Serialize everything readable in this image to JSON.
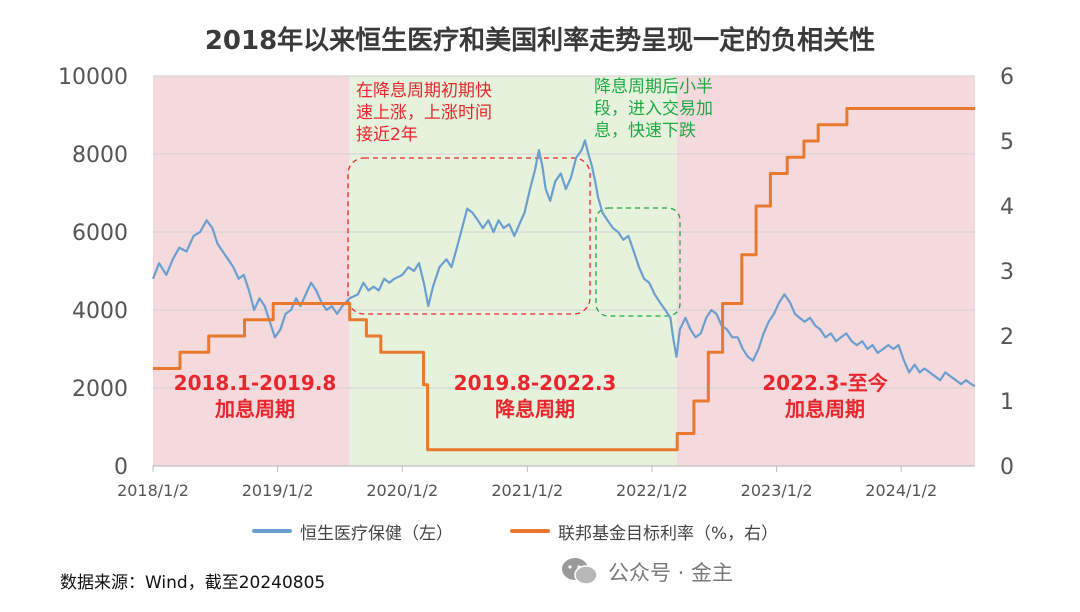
{
  "title": "2018年以来恒生医疗和美国利率走势呈现一定的负相关性",
  "source": "数据来源：Wind，截至20240805",
  "watermark": "公众号 · 金主",
  "annotations": {
    "rise": [
      "在降息周期初期快",
      "速上涨，上涨时间",
      "接近2年"
    ],
    "fall": [
      "降息周期后小半",
      "段，进入交易加",
      "息，快速下跌"
    ]
  },
  "periods": [
    {
      "range": "2018.1-2019.8",
      "label": "加息周期"
    },
    {
      "range": "2019.8-2022.3",
      "label": "降息周期"
    },
    {
      "range": "2022.3-至今",
      "label": "加息周期"
    }
  ],
  "legend": {
    "left_series": "恒生医疗保健（左）",
    "right_series": "联邦基金目标利率（%，右）"
  },
  "colors": {
    "index_line": "#6a9fd0",
    "rate_line": "#e8792f",
    "hike_shade": "#f5dadd",
    "cut_shade": "#e6f2dc",
    "annotation_red": "#e8262d",
    "annotation_green": "#1fa945"
  },
  "chart_data": {
    "type": "line",
    "x_type": "date",
    "x_ticks": [
      "2018/1/2",
      "2019/1/2",
      "2020/1/2",
      "2021/1/2",
      "2022/1/2",
      "2023/1/2",
      "2024/1/2"
    ],
    "x_range": [
      "2018/1/2",
      "2024/8/5"
    ],
    "y_left": {
      "ticks": [
        "0",
        "2000",
        "4000",
        "6000",
        "8000",
        "10000"
      ],
      "range": [
        0,
        10000
      ]
    },
    "y_right": {
      "ticks": [
        "0",
        "1",
        "2",
        "3",
        "4",
        "5",
        "6"
      ],
      "range": [
        0,
        6
      ]
    },
    "grid": "horizontal",
    "legend_position": "bottom",
    "shaded_periods": [
      {
        "start": "2018/1/2",
        "end": "2019/8/1",
        "kind": "hike"
      },
      {
        "start": "2019/8/1",
        "end": "2022/3/16",
        "kind": "cut"
      },
      {
        "start": "2022/3/16",
        "end": "2024/8/5",
        "kind": "hike"
      }
    ],
    "series": [
      {
        "name": "恒生医疗保健（左）",
        "axis": "left",
        "points": [
          [
            "2018/1/2",
            4800
          ],
          [
            "2018/1/20",
            5200
          ],
          [
            "2018/2/10",
            4900
          ],
          [
            "2018/3/1",
            5300
          ],
          [
            "2018/3/20",
            5600
          ],
          [
            "2018/4/10",
            5500
          ],
          [
            "2018/5/1",
            5900
          ],
          [
            "2018/5/20",
            6000
          ],
          [
            "2018/6/8",
            6300
          ],
          [
            "2018/6/25",
            6100
          ],
          [
            "2018/7/10",
            5700
          ],
          [
            "2018/7/25",
            5500
          ],
          [
            "2018/8/10",
            5300
          ],
          [
            "2018/8/25",
            5100
          ],
          [
            "2018/9/10",
            4800
          ],
          [
            "2018/9/25",
            4900
          ],
          [
            "2018/10/10",
            4500
          ],
          [
            "2018/10/25",
            4000
          ],
          [
            "2018/11/10",
            4300
          ],
          [
            "2018/11/25",
            4100
          ],
          [
            "2018/12/10",
            3700
          ],
          [
            "2018/12/25",
            3300
          ],
          [
            "2019/1/10",
            3500
          ],
          [
            "2019/1/25",
            3900
          ],
          [
            "2019/2/10",
            4000
          ],
          [
            "2019/2/25",
            4300
          ],
          [
            "2019/3/10",
            4100
          ],
          [
            "2019/3/25",
            4400
          ],
          [
            "2019/4/10",
            4700
          ],
          [
            "2019/4/25",
            4500
          ],
          [
            "2019/5/10",
            4200
          ],
          [
            "2019/5/25",
            4000
          ],
          [
            "2019/6/10",
            4100
          ],
          [
            "2019/6/25",
            3900
          ],
          [
            "2019/7/10",
            4100
          ],
          [
            "2019/8/1",
            4300
          ],
          [
            "2019/8/25",
            4400
          ],
          [
            "2019/9/10",
            4700
          ],
          [
            "2019/9/25",
            4500
          ],
          [
            "2019/10/10",
            4600
          ],
          [
            "2019/10/25",
            4500
          ],
          [
            "2019/11/10",
            4800
          ],
          [
            "2019/11/25",
            4700
          ],
          [
            "2019/12/10",
            4800
          ],
          [
            "2020/1/2",
            4900
          ],
          [
            "2020/1/20",
            5100
          ],
          [
            "2020/2/5",
            5000
          ],
          [
            "2020/2/20",
            5200
          ],
          [
            "2020/3/5",
            4700
          ],
          [
            "2020/3/18",
            4100
          ],
          [
            "2020/4/1",
            4600
          ],
          [
            "2020/4/20",
            5100
          ],
          [
            "2020/5/10",
            5300
          ],
          [
            "2020/5/25",
            5100
          ],
          [
            "2020/6/10",
            5600
          ],
          [
            "2020/6/25",
            6100
          ],
          [
            "2020/7/10",
            6600
          ],
          [
            "2020/7/25",
            6500
          ],
          [
            "2020/8/10",
            6300
          ],
          [
            "2020/8/25",
            6100
          ],
          [
            "2020/9/10",
            6300
          ],
          [
            "2020/9/25",
            6000
          ],
          [
            "2020/10/10",
            6300
          ],
          [
            "2020/10/25",
            6100
          ],
          [
            "2020/11/10",
            6200
          ],
          [
            "2020/11/25",
            5900
          ],
          [
            "2020/12/10",
            6200
          ],
          [
            "2020/12/25",
            6500
          ],
          [
            "2021/1/10",
            7100
          ],
          [
            "2021/1/25",
            7600
          ],
          [
            "2021/2/5",
            8100
          ],
          [
            "2021/2/15",
            7700
          ],
          [
            "2021/2/25",
            7100
          ],
          [
            "2021/3/10",
            6800
          ],
          [
            "2021/3/25",
            7300
          ],
          [
            "2021/4/10",
            7500
          ],
          [
            "2021/4/25",
            7100
          ],
          [
            "2021/5/10",
            7400
          ],
          [
            "2021/5/25",
            7900
          ],
          [
            "2021/6/10",
            8100
          ],
          [
            "2021/6/20",
            8350
          ],
          [
            "2021/6/30",
            8000
          ],
          [
            "2021/7/10",
            7700
          ],
          [
            "2021/7/20",
            7300
          ],
          [
            "2021/7/28",
            6900
          ],
          [
            "2021/8/10",
            6500
          ],
          [
            "2021/8/25",
            6300
          ],
          [
            "2021/9/10",
            6100
          ],
          [
            "2021/9/25",
            6000
          ],
          [
            "2021/10/10",
            5800
          ],
          [
            "2021/10/25",
            5900
          ],
          [
            "2021/11/10",
            5500
          ],
          [
            "2021/11/25",
            5100
          ],
          [
            "2021/12/10",
            4800
          ],
          [
            "2021/12/25",
            4700
          ],
          [
            "2022/1/10",
            4400
          ],
          [
            "2022/1/25",
            4200
          ],
          [
            "2022/2/10",
            4000
          ],
          [
            "2022/2/25",
            3800
          ],
          [
            "2022/3/5",
            3300
          ],
          [
            "2022/3/15",
            2800
          ],
          [
            "2022/3/25",
            3500
          ],
          [
            "2022/4/10",
            3800
          ],
          [
            "2022/4/25",
            3500
          ],
          [
            "2022/5/10",
            3300
          ],
          [
            "2022/5/25",
            3400
          ],
          [
            "2022/6/10",
            3800
          ],
          [
            "2022/6/25",
            4000
          ],
          [
            "2022/7/10",
            3900
          ],
          [
            "2022/7/25",
            3600
          ],
          [
            "2022/8/10",
            3500
          ],
          [
            "2022/8/25",
            3300
          ],
          [
            "2022/9/10",
            3300
          ],
          [
            "2022/9/25",
            3000
          ],
          [
            "2022/10/10",
            2800
          ],
          [
            "2022/10/25",
            2700
          ],
          [
            "2022/11/10",
            3000
          ],
          [
            "2022/11/25",
            3400
          ],
          [
            "2022/12/10",
            3700
          ],
          [
            "2022/12/25",
            3900
          ],
          [
            "2023/1/10",
            4200
          ],
          [
            "2023/1/25",
            4400
          ],
          [
            "2023/2/10",
            4200
          ],
          [
            "2023/2/25",
            3900
          ],
          [
            "2023/3/10",
            3800
          ],
          [
            "2023/3/25",
            3700
          ],
          [
            "2023/4/10",
            3800
          ],
          [
            "2023/4/25",
            3600
          ],
          [
            "2023/5/10",
            3500
          ],
          [
            "2023/5/25",
            3300
          ],
          [
            "2023/6/10",
            3400
          ],
          [
            "2023/6/25",
            3200
          ],
          [
            "2023/7/10",
            3300
          ],
          [
            "2023/7/25",
            3400
          ],
          [
            "2023/8/10",
            3200
          ],
          [
            "2023/8/25",
            3100
          ],
          [
            "2023/9/10",
            3200
          ],
          [
            "2023/9/25",
            3000
          ],
          [
            "2023/10/10",
            3100
          ],
          [
            "2023/10/25",
            2900
          ],
          [
            "2023/11/10",
            3000
          ],
          [
            "2023/11/25",
            3100
          ],
          [
            "2023/12/10",
            3000
          ],
          [
            "2023/12/25",
            3100
          ],
          [
            "2024/1/10",
            2700
          ],
          [
            "2024/1/25",
            2400
          ],
          [
            "2024/2/10",
            2600
          ],
          [
            "2024/2/25",
            2400
          ],
          [
            "2024/3/10",
            2500
          ],
          [
            "2024/3/25",
            2400
          ],
          [
            "2024/4/10",
            2300
          ],
          [
            "2024/4/25",
            2200
          ],
          [
            "2024/5/10",
            2400
          ],
          [
            "2024/5/25",
            2300
          ],
          [
            "2024/6/10",
            2200
          ],
          [
            "2024/6/25",
            2100
          ],
          [
            "2024/7/10",
            2200
          ],
          [
            "2024/7/25",
            2100
          ],
          [
            "2024/8/5",
            2050
          ]
        ]
      },
      {
        "name": "联邦基金目标利率（%，右）",
        "axis": "right",
        "step": true,
        "points": [
          [
            "2018/1/2",
            1.5
          ],
          [
            "2018/3/22",
            1.75
          ],
          [
            "2018/6/14",
            2.0
          ],
          [
            "2018/9/27",
            2.25
          ],
          [
            "2018/12/20",
            2.5
          ],
          [
            "2019/8/1",
            2.25
          ],
          [
            "2019/9/19",
            2.0
          ],
          [
            "2019/10/31",
            1.75
          ],
          [
            "2020/3/4",
            1.25
          ],
          [
            "2020/3/16",
            0.25
          ],
          [
            "2022/3/17",
            0.5
          ],
          [
            "2022/5/5",
            1.0
          ],
          [
            "2022/6/16",
            1.75
          ],
          [
            "2022/7/28",
            2.5
          ],
          [
            "2022/9/22",
            3.25
          ],
          [
            "2022/11/3",
            4.0
          ],
          [
            "2022/12/15",
            4.5
          ],
          [
            "2023/2/2",
            4.75
          ],
          [
            "2023/3/23",
            5.0
          ],
          [
            "2023/5/4",
            5.25
          ],
          [
            "2023/7/27",
            5.5
          ],
          [
            "2024/8/5",
            5.5
          ]
        ]
      }
    ]
  }
}
